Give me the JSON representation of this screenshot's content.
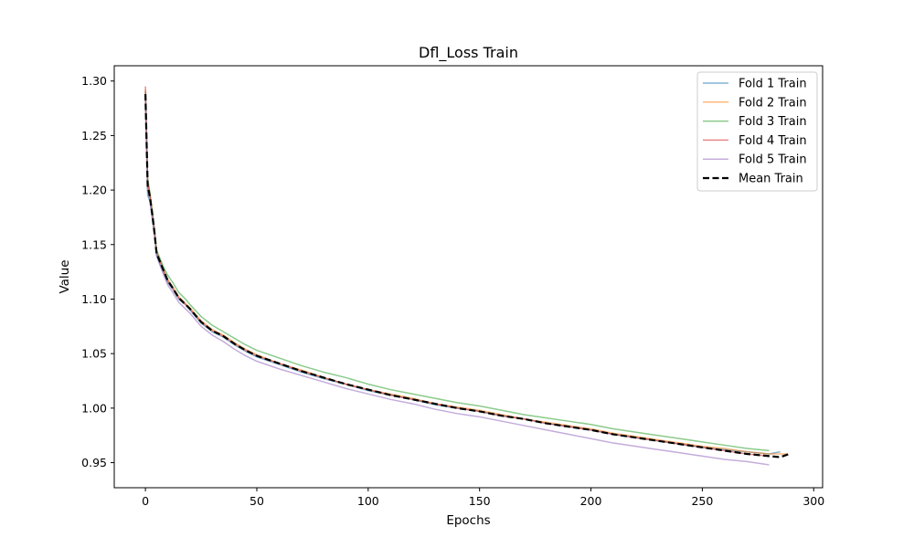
{
  "chart_data": {
    "type": "line",
    "title": "Dfl_Loss Train",
    "xlabel": "Epochs",
    "ylabel": "Value",
    "xlim": [
      -14,
      304
    ],
    "ylim": [
      0.927,
      1.314
    ],
    "xticks": [
      0,
      50,
      100,
      150,
      200,
      250,
      300
    ],
    "yticks": [
      0.95,
      1.0,
      1.05,
      1.1,
      1.15,
      1.2,
      1.25,
      1.3
    ],
    "xtick_labels": [
      "0",
      "50",
      "100",
      "150",
      "200",
      "250",
      "300"
    ],
    "ytick_labels": [
      "0.95",
      "1.00",
      "1.05",
      "1.10",
      "1.15",
      "1.20",
      "1.25",
      "1.30"
    ],
    "grid": false,
    "legend_position": "top-right",
    "series": [
      {
        "name": "Fold 1 Train",
        "color": "#1f77b4",
        "style": "solid",
        "alpha": 0.55,
        "x": [
          0,
          1,
          2,
          3,
          4,
          5,
          6,
          8,
          10,
          12,
          15,
          18,
          20,
          25,
          30,
          35,
          40,
          45,
          50,
          60,
          70,
          80,
          90,
          100,
          110,
          120,
          130,
          140,
          150,
          160,
          170,
          180,
          190,
          200,
          210,
          220,
          230,
          240,
          250,
          260,
          270,
          280,
          285
        ],
        "y": [
          1.28,
          1.195,
          1.19,
          1.175,
          1.16,
          1.14,
          1.135,
          1.125,
          1.115,
          1.11,
          1.1,
          1.095,
          1.09,
          1.078,
          1.07,
          1.065,
          1.058,
          1.052,
          1.047,
          1.04,
          1.033,
          1.027,
          1.022,
          1.016,
          1.012,
          1.008,
          1.003,
          1.0,
          0.997,
          0.993,
          0.99,
          0.986,
          0.983,
          0.98,
          0.976,
          0.973,
          0.97,
          0.967,
          0.964,
          0.962,
          0.96,
          0.958,
          0.96
        ]
      },
      {
        "name": "Fold 2 Train",
        "color": "#ff7f0e",
        "style": "solid",
        "alpha": 0.55,
        "x": [
          0,
          1,
          2,
          3,
          4,
          5,
          6,
          8,
          10,
          12,
          15,
          18,
          20,
          25,
          30,
          35,
          40,
          45,
          50,
          60,
          70,
          80,
          90,
          100,
          110,
          120,
          130,
          140,
          150,
          160,
          170,
          180,
          190,
          200,
          210,
          220,
          230,
          240,
          250,
          260,
          270,
          280,
          288
        ],
        "y": [
          1.292,
          1.205,
          1.195,
          1.18,
          1.163,
          1.142,
          1.138,
          1.128,
          1.118,
          1.112,
          1.102,
          1.096,
          1.092,
          1.08,
          1.072,
          1.067,
          1.06,
          1.054,
          1.049,
          1.041,
          1.035,
          1.028,
          1.022,
          1.017,
          1.013,
          1.009,
          1.004,
          1.001,
          0.998,
          0.994,
          0.99,
          0.987,
          0.984,
          0.981,
          0.977,
          0.974,
          0.971,
          0.968,
          0.965,
          0.963,
          0.96,
          0.958,
          0.958
        ]
      },
      {
        "name": "Fold 3 Train",
        "color": "#2ca02c",
        "style": "solid",
        "alpha": 0.55,
        "x": [
          0,
          1,
          2,
          3,
          4,
          5,
          6,
          8,
          10,
          12,
          15,
          18,
          20,
          25,
          30,
          35,
          40,
          45,
          50,
          60,
          70,
          80,
          90,
          100,
          110,
          120,
          130,
          140,
          150,
          160,
          170,
          180,
          190,
          200,
          210,
          220,
          230,
          240,
          250,
          260,
          270,
          280
        ],
        "y": [
          1.29,
          1.21,
          1.198,
          1.182,
          1.165,
          1.145,
          1.14,
          1.13,
          1.122,
          1.116,
          1.106,
          1.1,
          1.095,
          1.084,
          1.076,
          1.07,
          1.064,
          1.058,
          1.053,
          1.046,
          1.039,
          1.033,
          1.028,
          1.022,
          1.017,
          1.013,
          1.009,
          1.005,
          1.002,
          0.998,
          0.994,
          0.991,
          0.988,
          0.985,
          0.981,
          0.978,
          0.975,
          0.972,
          0.969,
          0.966,
          0.963,
          0.961
        ]
      },
      {
        "name": "Fold 4 Train",
        "color": "#d62728",
        "style": "solid",
        "alpha": 0.55,
        "x": [
          0,
          1,
          2,
          3,
          4,
          5,
          6,
          8,
          10,
          12,
          15,
          18,
          20,
          25,
          30,
          35,
          40,
          45,
          50,
          60,
          70,
          80,
          90,
          100,
          110,
          120,
          130,
          140,
          150,
          160,
          170,
          180,
          190,
          200,
          210,
          220,
          230,
          240,
          250,
          260,
          270,
          280
        ],
        "y": [
          1.295,
          1.208,
          1.196,
          1.18,
          1.164,
          1.143,
          1.138,
          1.127,
          1.117,
          1.111,
          1.101,
          1.095,
          1.091,
          1.079,
          1.071,
          1.066,
          1.059,
          1.053,
          1.048,
          1.041,
          1.034,
          1.028,
          1.022,
          1.017,
          1.012,
          1.008,
          1.004,
          1.0,
          0.997,
          0.993,
          0.99,
          0.986,
          0.983,
          0.98,
          0.976,
          0.973,
          0.97,
          0.967,
          0.964,
          0.961,
          0.958,
          0.956
        ]
      },
      {
        "name": "Fold 5 Train",
        "color": "#9467bd",
        "style": "solid",
        "alpha": 0.55,
        "x": [
          0,
          1,
          2,
          3,
          4,
          5,
          6,
          8,
          10,
          12,
          15,
          18,
          20,
          25,
          30,
          35,
          40,
          45,
          50,
          60,
          70,
          80,
          90,
          100,
          110,
          120,
          130,
          140,
          150,
          160,
          170,
          180,
          190,
          200,
          210,
          220,
          230,
          240,
          250,
          260,
          270,
          280
        ],
        "y": [
          1.285,
          1.2,
          1.19,
          1.176,
          1.16,
          1.14,
          1.134,
          1.123,
          1.113,
          1.107,
          1.097,
          1.091,
          1.087,
          1.075,
          1.067,
          1.061,
          1.054,
          1.048,
          1.043,
          1.036,
          1.03,
          1.024,
          1.018,
          1.013,
          1.008,
          1.004,
          0.999,
          0.995,
          0.992,
          0.988,
          0.984,
          0.98,
          0.976,
          0.972,
          0.968,
          0.965,
          0.962,
          0.959,
          0.956,
          0.953,
          0.951,
          0.948
        ]
      },
      {
        "name": "Mean Train",
        "color": "#000000",
        "style": "dashed",
        "alpha": 1,
        "x": [
          0,
          1,
          2,
          3,
          4,
          5,
          6,
          8,
          10,
          12,
          15,
          18,
          20,
          25,
          30,
          35,
          40,
          45,
          50,
          60,
          70,
          80,
          90,
          100,
          110,
          120,
          130,
          140,
          150,
          160,
          170,
          180,
          190,
          200,
          210,
          220,
          230,
          240,
          250,
          260,
          270,
          280,
          285,
          289
        ],
        "y": [
          1.288,
          1.204,
          1.194,
          1.179,
          1.162,
          1.142,
          1.137,
          1.127,
          1.117,
          1.111,
          1.101,
          1.095,
          1.091,
          1.079,
          1.071,
          1.066,
          1.059,
          1.053,
          1.048,
          1.041,
          1.034,
          1.028,
          1.022,
          1.017,
          1.012,
          1.008,
          1.004,
          1.0,
          0.997,
          0.993,
          0.99,
          0.986,
          0.983,
          0.98,
          0.976,
          0.973,
          0.97,
          0.967,
          0.964,
          0.961,
          0.958,
          0.956,
          0.955,
          0.958
        ]
      }
    ]
  }
}
